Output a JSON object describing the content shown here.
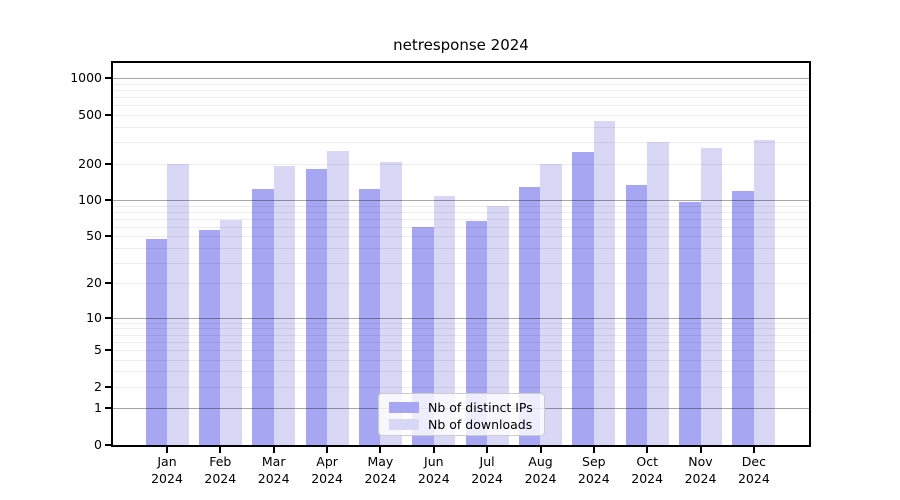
{
  "chart_data": {
    "type": "bar",
    "title": "netresponse 2024",
    "categories": [
      "Jan 2024",
      "Feb 2024",
      "Mar 2024",
      "Apr 2024",
      "May 2024",
      "Jun 2024",
      "Jul 2024",
      "Aug 2024",
      "Sep 2024",
      "Oct 2024",
      "Nov 2024",
      "Dec 2024"
    ],
    "series": [
      {
        "name": "Nb of distinct IPs",
        "color": "#a6a6f2",
        "values": [
          48,
          56,
          123,
          180,
          124,
          60,
          67,
          129,
          250,
          133,
          97,
          119
        ]
      },
      {
        "name": "Nb of downloads",
        "color": "#d8d8f6",
        "values": [
          200,
          69,
          190,
          255,
          205,
          108,
          90,
          197,
          447,
          300,
          268,
          314
        ]
      }
    ],
    "xlabel": "",
    "ylabel": "",
    "yaxis": {
      "scale": "log1p",
      "ticks": [
        0,
        1,
        2,
        5,
        10,
        20,
        50,
        100,
        200,
        500,
        1000
      ],
      "major_gridlines": [
        1,
        10,
        100,
        1000
      ],
      "minor_gridlines": [
        2,
        3,
        4,
        5,
        6,
        7,
        8,
        9,
        20,
        30,
        40,
        50,
        60,
        70,
        80,
        90,
        200,
        300,
        400,
        500,
        600,
        700,
        800,
        900
      ],
      "ylim": [
        0,
        1360
      ],
      "grid": true
    },
    "legend": {
      "position": "lower center",
      "entries": [
        "Nb of distinct IPs",
        "Nb of downloads"
      ]
    }
  }
}
